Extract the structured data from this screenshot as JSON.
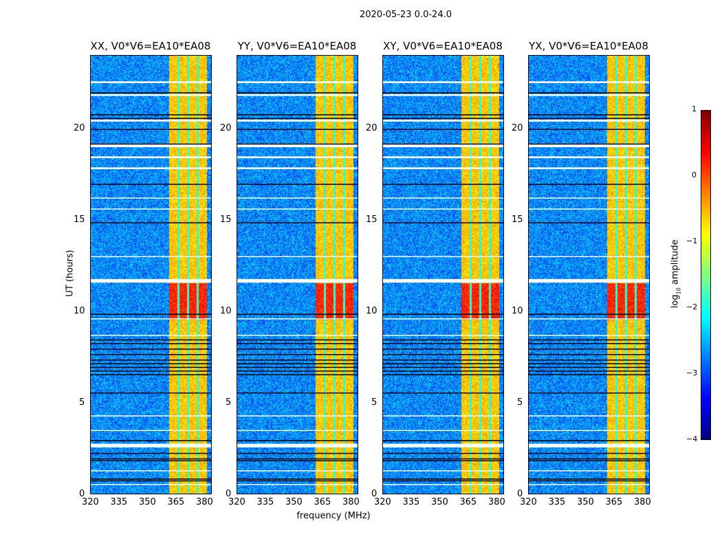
{
  "chart_data": {
    "type": "heatmap",
    "title": "2020-05-23 0.0-24.0",
    "xlabel": "frequency (MHz)",
    "ylabel": "UT (hours)",
    "xlim": [
      320,
      384
    ],
    "ylim": [
      0,
      24
    ],
    "xticks": [
      "320",
      "335",
      "350",
      "365",
      "380"
    ],
    "xtick_values": [
      320,
      335,
      350,
      365,
      380
    ],
    "yticks": [
      "0",
      "5",
      "10",
      "15",
      "20"
    ],
    "ytick_values": [
      0,
      5,
      10,
      15,
      20
    ],
    "panels": [
      {
        "title": "XX, V0*V6=EA10*EA08"
      },
      {
        "title": "YY, V0*V6=EA10*EA08"
      },
      {
        "title": "XY, V0*V6=EA10*EA08"
      },
      {
        "title": "YX, V0*V6=EA10*EA08"
      }
    ],
    "background_log_amplitude": -2.7,
    "rfi_band_mhz": [
      361,
      381
    ],
    "rfi_band_log_amplitude": -0.6,
    "rfi_band_gaps_mhz": [
      366,
      371,
      376
    ],
    "rfi_enhanced_hours": [
      9.6,
      11.6
    ],
    "rfi_enhanced_log_amplitude": 0.2,
    "flagged_white_hours": [
      [
        2.6,
        2.8
      ],
      [
        11.6,
        11.8
      ],
      [
        19.0,
        19.2
      ],
      [
        17.8,
        17.9
      ],
      [
        21.8,
        21.9
      ],
      [
        22.5,
        22.6
      ],
      [
        0.55,
        0.6
      ],
      [
        1.3,
        1.35
      ],
      [
        3.5,
        3.55
      ],
      [
        4.3,
        4.35
      ],
      [
        8.7,
        8.75
      ],
      [
        9.6,
        9.65
      ],
      [
        13.0,
        13.05
      ],
      [
        15.6,
        15.65
      ],
      [
        16.2,
        16.25
      ],
      [
        18.4,
        18.5
      ],
      [
        20.4,
        20.5
      ]
    ],
    "flagged_black_hours": [
      0.8,
      0.9,
      1.9,
      2.0,
      2.3,
      3.0,
      5.6,
      6.6,
      6.8,
      7.0,
      7.2,
      7.4,
      7.7,
      8.0,
      8.3,
      8.5,
      9.9,
      14.9,
      17.0,
      19.2,
      20.0,
      20.6,
      20.8,
      22.0
    ],
    "colorbar": {
      "label": "log10 amplitude",
      "label_main": "log",
      "label_sub": "10",
      "label_rest": " amplitude",
      "range": [
        -4,
        1
      ],
      "ticks": [
        "1",
        "0",
        "−1",
        "−2",
        "−3",
        "−4"
      ],
      "tick_values": [
        1,
        0,
        -1,
        -2,
        -3,
        -4
      ],
      "colormap": "jet"
    }
  }
}
